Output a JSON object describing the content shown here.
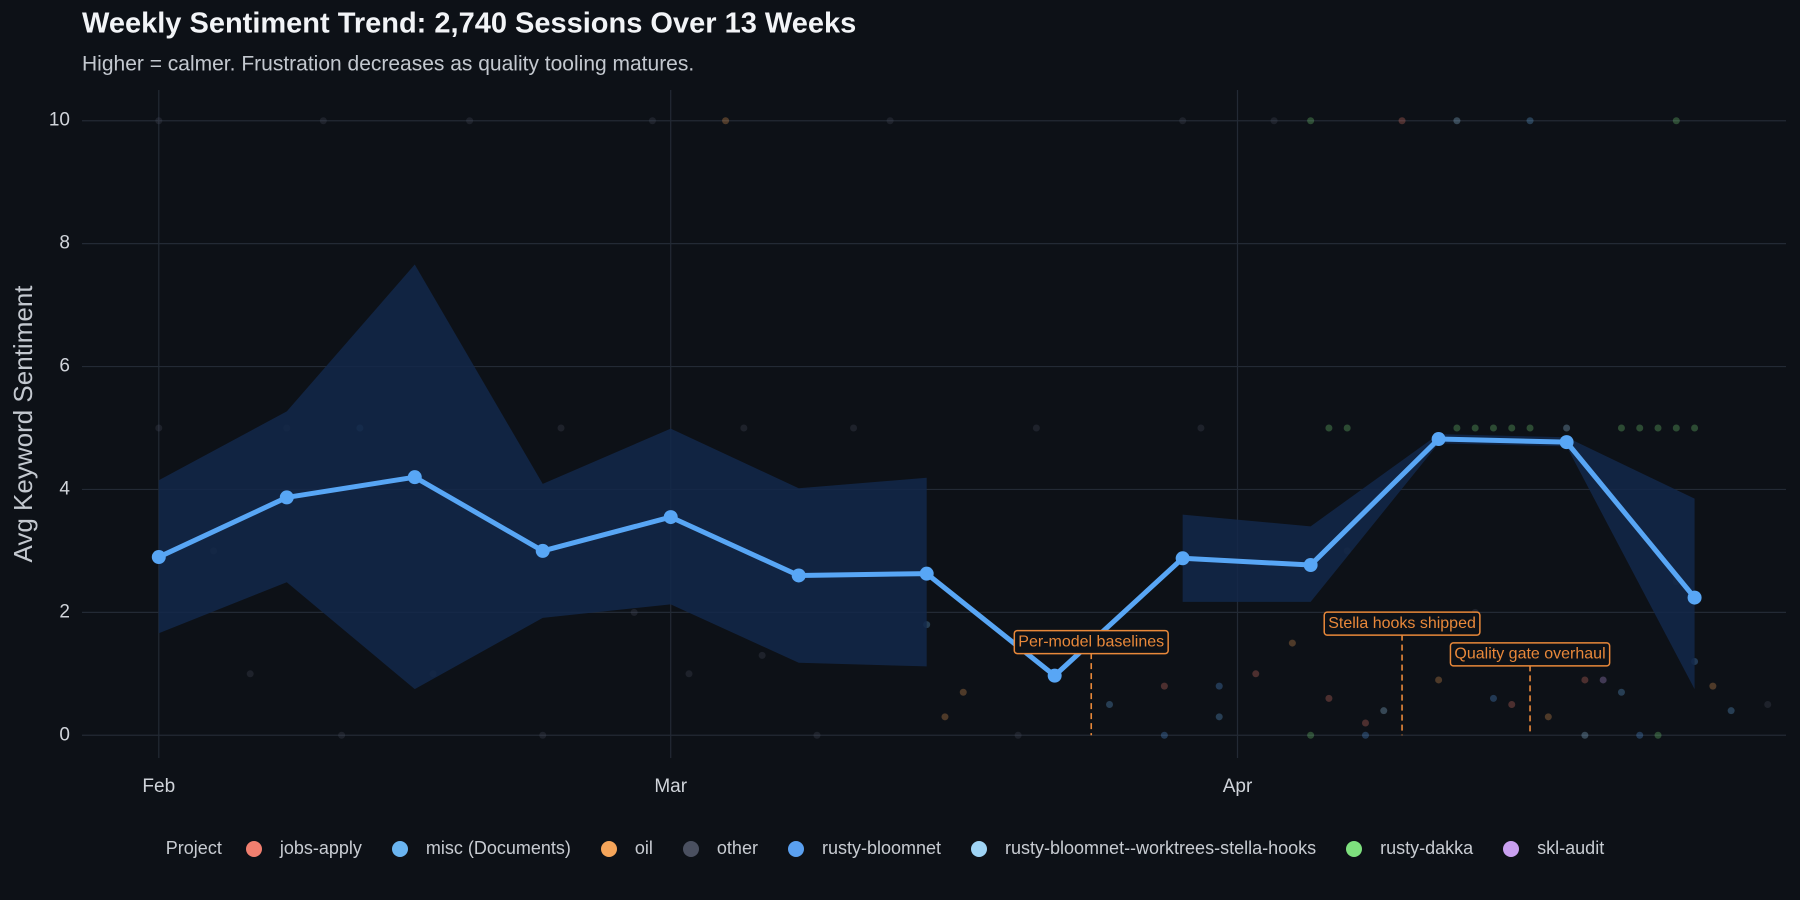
{
  "chart_data": {
    "type": "line",
    "title": "Weekly Sentiment Trend: 2,740 Sessions Over 13 Weeks",
    "subtitle": "Higher = calmer. Frustration decreases as quality tooling matures.",
    "y_label": "Avg Keyword Sentiment",
    "legend_title": "Project",
    "color": "#58a6f5",
    "band_color": "#13284a",
    "grid": true,
    "xlim": [
      -4.2,
      89
    ],
    "xticks": [
      {
        "value": 0,
        "label": "Feb"
      },
      {
        "value": 28,
        "label": "Mar"
      },
      {
        "value": 59,
        "label": "Apr"
      }
    ],
    "ylim": [
      -0.37,
      10.5
    ],
    "yticks": [
      0,
      2,
      4,
      6,
      8,
      10
    ],
    "x": [
      0,
      7,
      14,
      21,
      28,
      35,
      42,
      49,
      56,
      63,
      70,
      77,
      84
    ],
    "values": [
      2.9,
      3.87,
      4.2,
      3.0,
      3.55,
      2.6,
      2.63,
      0.97,
      2.88,
      2.77,
      4.82,
      4.77,
      2.24
    ],
    "band": {
      "upper": [
        4.15,
        5.27,
        7.66,
        4.09,
        4.99,
        4.02,
        4.19,
        null,
        3.59,
        3.4,
        4.9,
        4.85,
        3.85
      ],
      "lower": [
        1.66,
        2.49,
        0.75,
        1.91,
        2.13,
        1.18,
        1.12,
        null,
        2.17,
        2.17,
        4.75,
        4.7,
        0.75
      ]
    },
    "annotations": [
      {
        "x": 51,
        "y": 1.5,
        "text": "Per-model baselines"
      },
      {
        "x": 68,
        "y": 1.8,
        "text": "Stella hooks shipped"
      },
      {
        "x": 75,
        "y": 1.3,
        "text": "Quality gate overhaul"
      }
    ],
    "annotation_color": "#e8883a",
    "points": [
      {
        "name": "jobs-apply",
        "color": "#f07f6f",
        "x": [
          60,
          64,
          66,
          71,
          74,
          78,
          55,
          68
        ],
        "y": [
          1.0,
          0.6,
          0.2,
          1.2,
          0.5,
          0.9,
          0.8,
          10
        ]
      },
      {
        "name": "misc (Documents)",
        "color": "#6ab4f0",
        "x": [
          58,
          52,
          80,
          86,
          11,
          75,
          42
        ],
        "y": [
          0.3,
          0.5,
          0.7,
          0.4,
          5,
          10,
          1.8
        ]
      },
      {
        "name": "oil",
        "color": "#f5a55a",
        "x": [
          43,
          44,
          62,
          70,
          76,
          31,
          85
        ],
        "y": [
          0.3,
          0.7,
          1.5,
          0.9,
          0.3,
          10,
          0.8
        ]
      },
      {
        "name": "other",
        "color": "#4a5060",
        "x": [
          0,
          9,
          17,
          27,
          40,
          0,
          7,
          22,
          32,
          38,
          3,
          5,
          10,
          15,
          21,
          26,
          29,
          33,
          36,
          47,
          56,
          61,
          48,
          57,
          65,
          72,
          83,
          88,
          53
        ],
        "y": [
          10,
          10,
          10,
          10,
          10,
          5,
          5,
          5,
          5,
          5,
          3,
          1,
          0,
          1,
          0,
          2,
          1,
          1.3,
          0,
          0,
          10,
          10,
          5,
          5,
          3,
          2,
          2.5,
          0.5,
          1.5
        ]
      },
      {
        "name": "rusty-bloomnet",
        "color": "#5aa0f0",
        "x": [
          55,
          58,
          66,
          81,
          73,
          84
        ],
        "y": [
          0,
          0.8,
          0,
          0,
          0.6,
          1.2
        ]
      },
      {
        "name": "rusty-bloomnet--worktrees-stella-hooks",
        "color": "#9fd4f5",
        "x": [
          71,
          77,
          78,
          67
        ],
        "y": [
          10,
          5,
          0,
          0.4
        ]
      },
      {
        "name": "rusty-dakka",
        "color": "#7ee07e",
        "x": [
          64,
          65,
          71,
          72,
          73,
          74,
          75,
          80,
          81,
          82,
          83,
          84,
          63,
          83,
          63,
          82
        ],
        "y": [
          5,
          5,
          5,
          5,
          5,
          5,
          5,
          5,
          5,
          5,
          5,
          5,
          10,
          10,
          0,
          0
        ]
      },
      {
        "name": "skl-audit",
        "color": "#c9a0f0",
        "x": [
          79
        ],
        "y": [
          0.9
        ]
      }
    ]
  }
}
